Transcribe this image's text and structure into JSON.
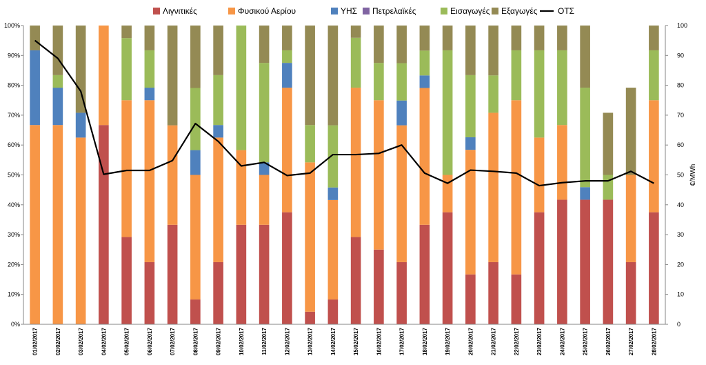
{
  "chart_data": {
    "type": "bar",
    "stacked": true,
    "categories": [
      "01/02/2017",
      "02/02/2017",
      "03/02/2017",
      "04/02/2017",
      "05/02/2017",
      "06/02/2017",
      "07/02/2017",
      "08/02/2017",
      "09/02/2017",
      "10/02/2017",
      "11/02/2017",
      "12/02/2017",
      "13/02/2017",
      "14/02/2017",
      "15/02/2017",
      "16/02/2017",
      "17/02/2017",
      "18/02/2017",
      "19/02/2017",
      "20/02/2017",
      "21/02/2017",
      "22/02/2017",
      "23/02/2017",
      "24/02/2017",
      "25/02/2017",
      "26/02/2017",
      "27/02/2017",
      "28/02/2017"
    ],
    "series": [
      {
        "name": "Λιγνιτικές",
        "color": "#c0504d",
        "values": [
          0,
          0,
          0,
          66.7,
          29.2,
          20.8,
          33.3,
          8.3,
          20.8,
          33.3,
          33.3,
          37.5,
          4.2,
          8.3,
          29.2,
          25,
          20.8,
          33.3,
          37.5,
          16.7,
          20.8,
          16.7,
          37.5,
          41.7,
          41.7,
          41.7,
          20.8,
          37.5
        ]
      },
      {
        "name": "Φυσικού Αερίου",
        "color": "#f79646",
        "values": [
          66.7,
          66.7,
          62.5,
          33.3,
          45.8,
          54.2,
          33.3,
          41.7,
          41.7,
          25,
          16.7,
          41.7,
          50,
          33.3,
          50,
          50,
          45.8,
          45.8,
          12.5,
          41.7,
          50,
          58.3,
          25,
          25,
          0,
          0,
          29.2,
          37.5
        ]
      },
      {
        "name": "ΥΗΣ",
        "color": "#4f81bd",
        "values": [
          25,
          12.5,
          8.3,
          0,
          0,
          4.2,
          0,
          8.3,
          4.2,
          0,
          4.2,
          8.3,
          0,
          4.2,
          0,
          0,
          8.3,
          4.2,
          0,
          4.2,
          0,
          0,
          0,
          0,
          4.2,
          0,
          0,
          0
        ]
      },
      {
        "name": "Πετρελαϊκές",
        "color": "#8064a2",
        "values": [
          0,
          0,
          0,
          0,
          0,
          0,
          0,
          0,
          0,
          0,
          0,
          0,
          0,
          0,
          0,
          0,
          0,
          0,
          0,
          0,
          0,
          0,
          0,
          0,
          0,
          0,
          0,
          0
        ]
      },
      {
        "name": "Εισαγωγές",
        "color": "#9bbb59",
        "values": [
          0,
          4.2,
          0,
          0,
          20.8,
          12.5,
          0,
          20.8,
          16.7,
          41.7,
          33.3,
          4.2,
          12.5,
          20.8,
          16.7,
          12.5,
          12.5,
          8.3,
          41.7,
          20.8,
          12.5,
          16.7,
          29.2,
          25,
          33.3,
          8.3,
          0,
          16.7
        ]
      },
      {
        "name": "Εξαγωγές",
        "color": "#948a54",
        "values": [
          8.3,
          16.6,
          29.2,
          0,
          4.2,
          8.3,
          33.4,
          20.9,
          16.6,
          0,
          12.5,
          8.3,
          33.3,
          33.4,
          4.1,
          12.5,
          12.6,
          8.4,
          8.3,
          16.6,
          16.7,
          8.3,
          8.3,
          8.3,
          20.8,
          20.8,
          29.2,
          8.3
        ]
      },
      {
        "name": "ΟΤΣ",
        "color": "#000000",
        "type": "line",
        "axis": "right",
        "values": [
          95,
          89,
          78,
          50.2,
          51.5,
          51.5,
          54.8,
          67.2,
          61.2,
          53,
          54.2,
          49.8,
          50.6,
          56.8,
          56.8,
          57.2,
          60,
          50.6,
          47.2,
          51.6,
          51.2,
          50.6,
          46.4,
          47.4,
          48,
          48,
          51.2,
          47.2
        ]
      }
    ],
    "yaxis_left": {
      "ylim": [
        0,
        100
      ],
      "ticks": [
        "0%",
        "10%",
        "20%",
        "30%",
        "40%",
        "50%",
        "60%",
        "70%",
        "80%",
        "90%",
        "100%"
      ]
    },
    "yaxis_right": {
      "ylim": [
        0,
        100
      ],
      "ticks": [
        "0",
        "10",
        "20",
        "30",
        "40",
        "50",
        "60",
        "70",
        "80",
        "90",
        "100"
      ],
      "label": "€/MWh"
    },
    "legend_placement": "top",
    "grid": false
  }
}
